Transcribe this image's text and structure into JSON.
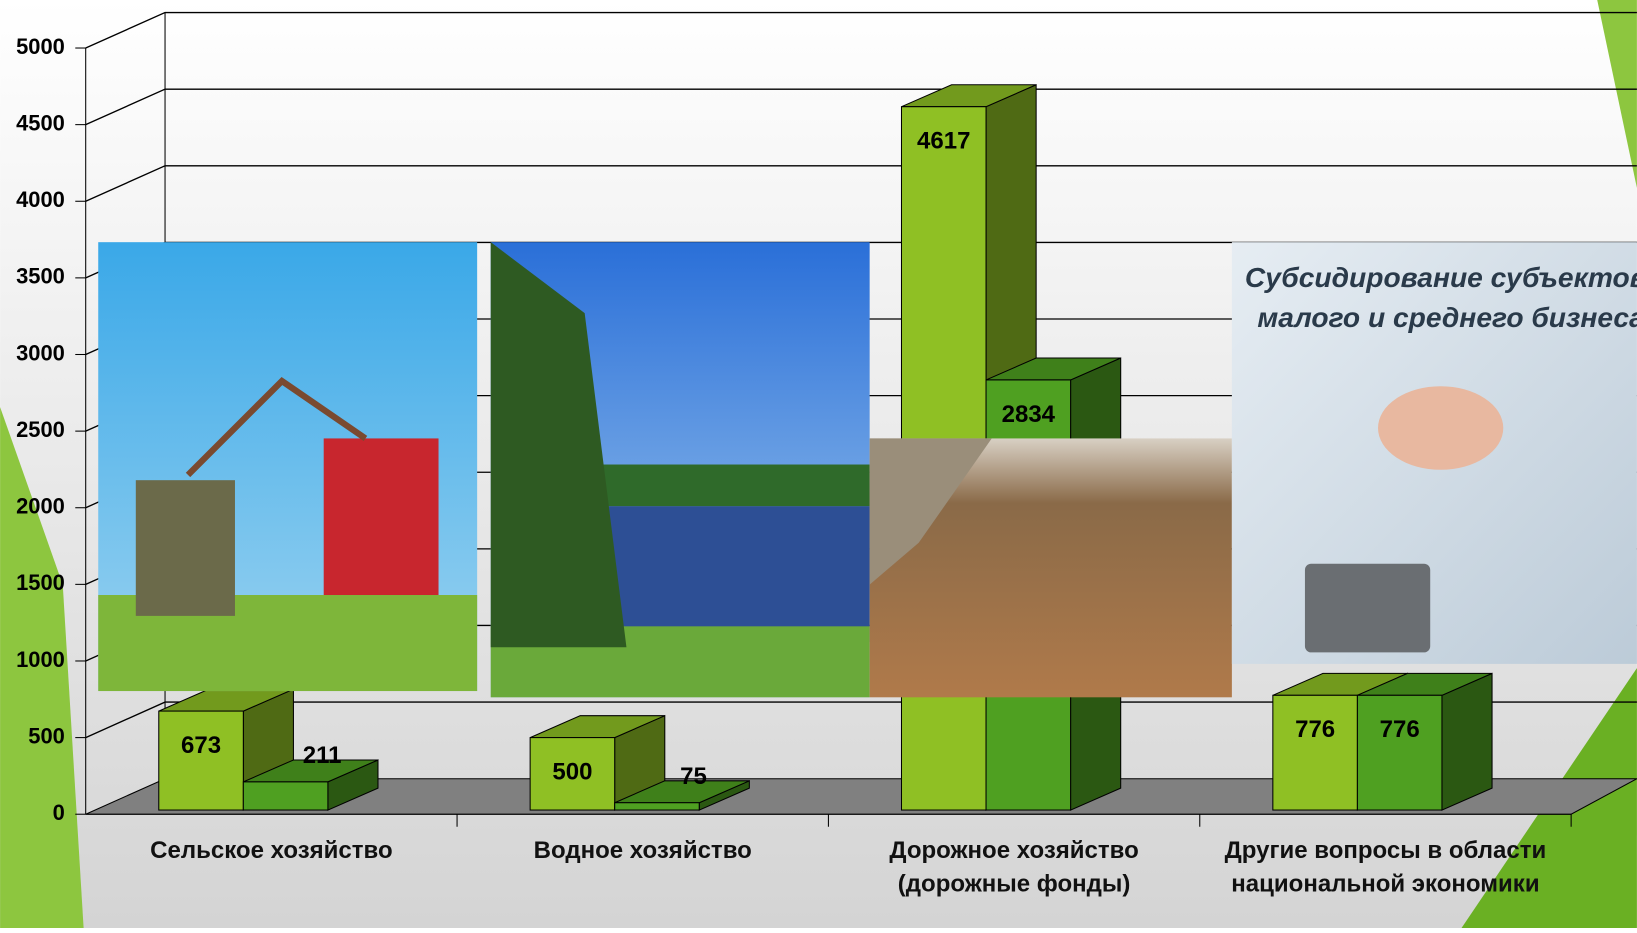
{
  "chart_data": {
    "type": "bar3d",
    "categories": [
      "Сельское хозяйство",
      "Водное хозяйство",
      "Дорожное хозяйство (дорожные фонды)",
      "Другие вопросы в области национальной экономики"
    ],
    "series": [
      {
        "color": "#8fc024",
        "values": [
          673,
          500,
          4617,
          776
        ]
      },
      {
        "color": "#4fa021",
        "values": [
          211,
          75,
          2834,
          776
        ]
      }
    ],
    "ylim": [
      0,
      5000
    ],
    "yticks": [
      0,
      500,
      1000,
      1500,
      2000,
      2500,
      3000,
      3500,
      4000,
      4500,
      5000
    ],
    "grid": true,
    "annotations": [
      "Субсидирование субъектов",
      "малого и среднего бизнеса"
    ]
  }
}
